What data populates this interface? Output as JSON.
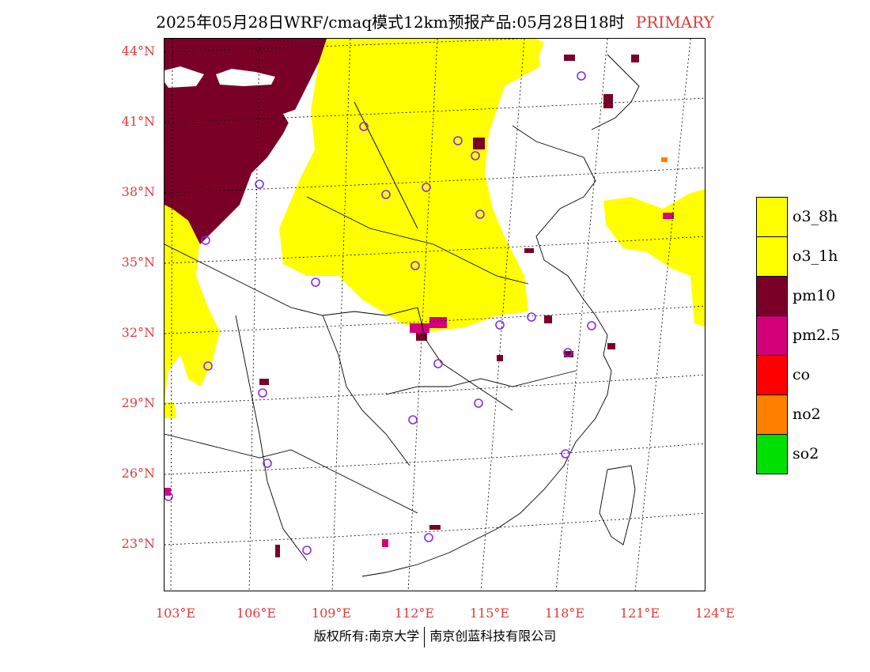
{
  "title": {
    "text": "2025年05月28日WRF/cmaq模式12km预报产品:05月28日18时",
    "tag": "PRIMARY"
  },
  "axes": {
    "lat_labels": [
      "44°N",
      "41°N",
      "38°N",
      "35°N",
      "32°N",
      "29°N",
      "26°N",
      "23°N"
    ],
    "lon_labels": [
      "103°E",
      "106°E",
      "109°E",
      "112°E",
      "115°E",
      "118°E",
      "121°E",
      "124°E"
    ]
  },
  "legend": {
    "items": [
      {
        "label": "o3_8h",
        "color": "#ffff00"
      },
      {
        "label": "o3_1h",
        "color": "#ffff00"
      },
      {
        "label": "pm10",
        "color": "#7a0028"
      },
      {
        "label": "pm2.5",
        "color": "#d4007a"
      },
      {
        "label": "co",
        "color": "#ff0000"
      },
      {
        "label": "no2",
        "color": "#ff7f00"
      },
      {
        "label": "so2",
        "color": "#00e000"
      }
    ]
  },
  "footer": {
    "left": "版权所有:南京大学",
    "right": "南京创蓝科技有限公司"
  },
  "colors": {
    "accent": "#e03a3a",
    "station_circle": "#8a2be2"
  }
}
